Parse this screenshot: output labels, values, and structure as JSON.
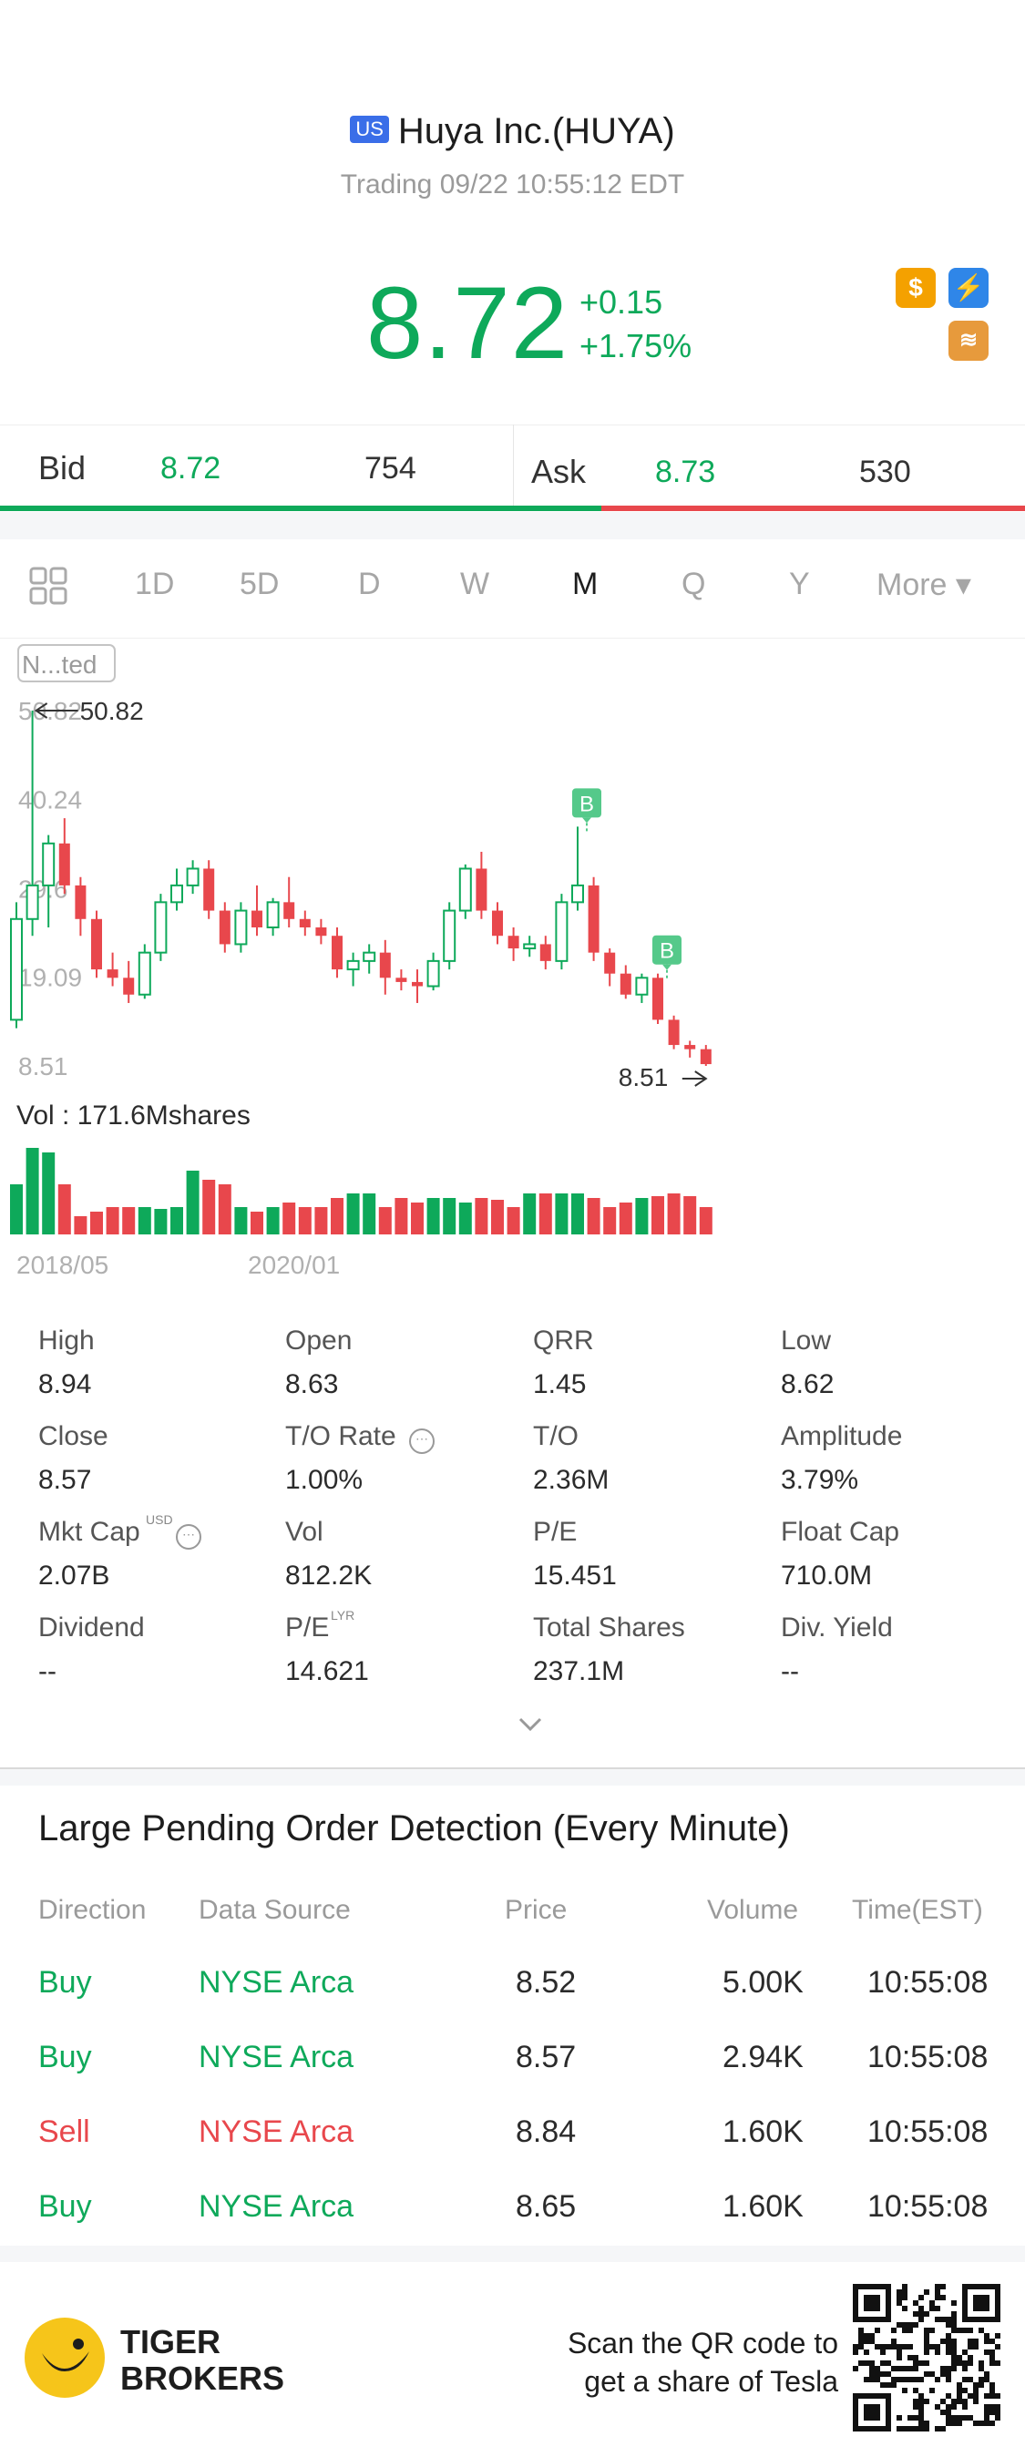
{
  "header": {
    "market_badge": "US",
    "title": "Huya Inc.(HUYA)",
    "status": "Trading 09/22 10:55:12 EDT",
    "price": "8.72",
    "change": "+0.15",
    "change_pct": "+1.75%",
    "icons": [
      "dollar-icon",
      "lightning-icon",
      "layers-icon"
    ]
  },
  "bidask": {
    "bid_label": "Bid",
    "bid_price": "8.72",
    "bid_size": "754",
    "ask_label": "Ask",
    "ask_price": "8.73",
    "ask_size": "530"
  },
  "tabs": [
    "1D",
    "5D",
    "D",
    "W",
    "M",
    "Q",
    "Y",
    "More ▾"
  ],
  "active_tab": "M",
  "chart_data": {
    "type": "candlestick",
    "adjust_label": "N...ted",
    "y_ticks": [
      "50.82",
      "40.24",
      "29.6",
      "19.09",
      "8.51"
    ],
    "max_label": "50.82",
    "min_label": "8.51",
    "markers": [
      "B",
      "B"
    ],
    "volume_label": "Vol  : 171.6Mshares",
    "x_labels": [
      "2018/05",
      "2020/01"
    ],
    "ylim": [
      8.51,
      50.82
    ],
    "candles": [
      {
        "o": 14.0,
        "h": 28.0,
        "l": 13.0,
        "c": 26.0
      },
      {
        "o": 26.0,
        "h": 50.82,
        "l": 24.0,
        "c": 30.0
      },
      {
        "o": 30.0,
        "h": 36.0,
        "l": 25.0,
        "c": 35.0
      },
      {
        "o": 35.0,
        "h": 38.0,
        "l": 29.0,
        "c": 30.0
      },
      {
        "o": 30.0,
        "h": 31.0,
        "l": 24.0,
        "c": 26.0
      },
      {
        "o": 26.0,
        "h": 27.0,
        "l": 19.0,
        "c": 20.0
      },
      {
        "o": 20.0,
        "h": 22.0,
        "l": 18.0,
        "c": 19.0
      },
      {
        "o": 19.0,
        "h": 21.0,
        "l": 16.0,
        "c": 17.0
      },
      {
        "o": 17.0,
        "h": 23.0,
        "l": 16.5,
        "c": 22.0
      },
      {
        "o": 22.0,
        "h": 29.0,
        "l": 21.0,
        "c": 28.0
      },
      {
        "o": 28.0,
        "h": 32.0,
        "l": 27.0,
        "c": 30.0
      },
      {
        "o": 30.0,
        "h": 33.0,
        "l": 29.0,
        "c": 32.0
      },
      {
        "o": 32.0,
        "h": 33.0,
        "l": 26.0,
        "c": 27.0
      },
      {
        "o": 27.0,
        "h": 28.0,
        "l": 22.0,
        "c": 23.0
      },
      {
        "o": 23.0,
        "h": 28.0,
        "l": 22.0,
        "c": 27.0
      },
      {
        "o": 27.0,
        "h": 30.0,
        "l": 24.0,
        "c": 25.0
      },
      {
        "o": 25.0,
        "h": 28.5,
        "l": 24.0,
        "c": 28.0
      },
      {
        "o": 28.0,
        "h": 31.0,
        "l": 25.0,
        "c": 26.0
      },
      {
        "o": 26.0,
        "h": 27.0,
        "l": 24.0,
        "c": 25.0
      },
      {
        "o": 25.0,
        "h": 26.0,
        "l": 23.0,
        "c": 24.0
      },
      {
        "o": 24.0,
        "h": 25.0,
        "l": 19.0,
        "c": 20.0
      },
      {
        "o": 20.0,
        "h": 22.0,
        "l": 18.0,
        "c": 21.0
      },
      {
        "o": 21.0,
        "h": 23.0,
        "l": 19.5,
        "c": 22.0
      },
      {
        "o": 22.0,
        "h": 23.5,
        "l": 17.0,
        "c": 19.0
      },
      {
        "o": 19.0,
        "h": 20.0,
        "l": 17.5,
        "c": 18.5
      },
      {
        "o": 18.5,
        "h": 20.0,
        "l": 16.0,
        "c": 18.0
      },
      {
        "o": 18.0,
        "h": 22.0,
        "l": 17.5,
        "c": 21.0
      },
      {
        "o": 21.0,
        "h": 28.0,
        "l": 20.0,
        "c": 27.0
      },
      {
        "o": 27.0,
        "h": 32.5,
        "l": 26.0,
        "c": 32.0
      },
      {
        "o": 32.0,
        "h": 34.0,
        "l": 26.0,
        "c": 27.0
      },
      {
        "o": 27.0,
        "h": 28.0,
        "l": 23.0,
        "c": 24.0
      },
      {
        "o": 24.0,
        "h": 25.0,
        "l": 21.0,
        "c": 22.5
      },
      {
        "o": 22.5,
        "h": 24.0,
        "l": 21.5,
        "c": 23.0
      },
      {
        "o": 23.0,
        "h": 24.0,
        "l": 20.0,
        "c": 21.0
      },
      {
        "o": 21.0,
        "h": 29.0,
        "l": 20.0,
        "c": 28.0
      },
      {
        "o": 28.0,
        "h": 37.0,
        "l": 27.0,
        "c": 30.0
      },
      {
        "o": 30.0,
        "h": 31.0,
        "l": 21.0,
        "c": 22.0
      },
      {
        "o": 22.0,
        "h": 22.5,
        "l": 18.0,
        "c": 19.5
      },
      {
        "o": 19.5,
        "h": 20.5,
        "l": 16.5,
        "c": 17.0
      },
      {
        "o": 17.0,
        "h": 19.5,
        "l": 16.0,
        "c": 19.0
      },
      {
        "o": 19.0,
        "h": 19.5,
        "l": 13.5,
        "c": 14.0
      },
      {
        "o": 14.0,
        "h": 14.5,
        "l": 10.5,
        "c": 11.0
      },
      {
        "o": 11.0,
        "h": 11.5,
        "l": 9.5,
        "c": 10.5
      },
      {
        "o": 10.5,
        "h": 11.0,
        "l": 8.51,
        "c": 8.72
      }
    ],
    "volume": [
      0.55,
      0.95,
      0.9,
      0.55,
      0.2,
      0.25,
      0.3,
      0.3,
      0.3,
      0.28,
      0.3,
      0.7,
      0.6,
      0.55,
      0.3,
      0.25,
      0.3,
      0.35,
      0.3,
      0.3,
      0.4,
      0.45,
      0.45,
      0.3,
      0.4,
      0.35,
      0.4,
      0.4,
      0.35,
      0.4,
      0.38,
      0.3,
      0.45,
      0.45,
      0.45,
      0.45,
      0.4,
      0.3,
      0.35,
      0.4,
      0.42,
      0.45,
      0.42,
      0.3
    ]
  },
  "stats": [
    {
      "label": "High",
      "value": "8.94"
    },
    {
      "label": "Open",
      "value": "8.63"
    },
    {
      "label": "QRR",
      "value": "1.45"
    },
    {
      "label": "Low",
      "value": "8.62"
    },
    {
      "label": "Close",
      "value": "8.57"
    },
    {
      "label": "T/O Rate",
      "value": "1.00%"
    },
    {
      "label": "T/O",
      "value": "2.36M"
    },
    {
      "label": "Amplitude",
      "value": "3.79%"
    },
    {
      "label": "Mkt Cap",
      "value": "2.07B"
    },
    {
      "label": "Vol",
      "value": "812.2K"
    },
    {
      "label": "P/E",
      "value": "15.451"
    },
    {
      "label": "Float Cap",
      "value": "710.0M"
    },
    {
      "label": "Dividend",
      "value": "--"
    },
    {
      "label": "P/E",
      "value": "14.621"
    },
    {
      "label": "Total Shares",
      "value": "237.1M"
    },
    {
      "label": "Div. Yield",
      "value": "--"
    }
  ],
  "stat_superscripts": {
    "mktcap": "USD",
    "pe_lyr": "LYR"
  },
  "large_orders": {
    "title": "Large Pending Order Detection (Every Minute)",
    "columns": [
      "Direction",
      "Data Source",
      "Price",
      "Volume",
      "Time(EST)"
    ],
    "rows": [
      {
        "direction": "Buy",
        "source": "NYSE Arca",
        "price": "8.52",
        "volume": "5.00K",
        "time": "10:55:08",
        "side": "buy"
      },
      {
        "direction": "Buy",
        "source": "NYSE Arca",
        "price": "8.57",
        "volume": "2.94K",
        "time": "10:55:08",
        "side": "buy"
      },
      {
        "direction": "Sell",
        "source": "NYSE Arca",
        "price": "8.84",
        "volume": "1.60K",
        "time": "10:55:08",
        "side": "sell"
      },
      {
        "direction": "Buy",
        "source": "NYSE Arca",
        "price": "8.65",
        "volume": "1.60K",
        "time": "10:55:08",
        "side": "buy"
      }
    ]
  },
  "footer": {
    "brand_line1": "TIGER",
    "brand_line2": "BROKERS",
    "promo_line1": "Scan the QR code to",
    "promo_line2": "get a share of Tesla"
  },
  "colors": {
    "up": "#0ea95a",
    "down": "#e8474c",
    "up_light": "#55c98a"
  }
}
